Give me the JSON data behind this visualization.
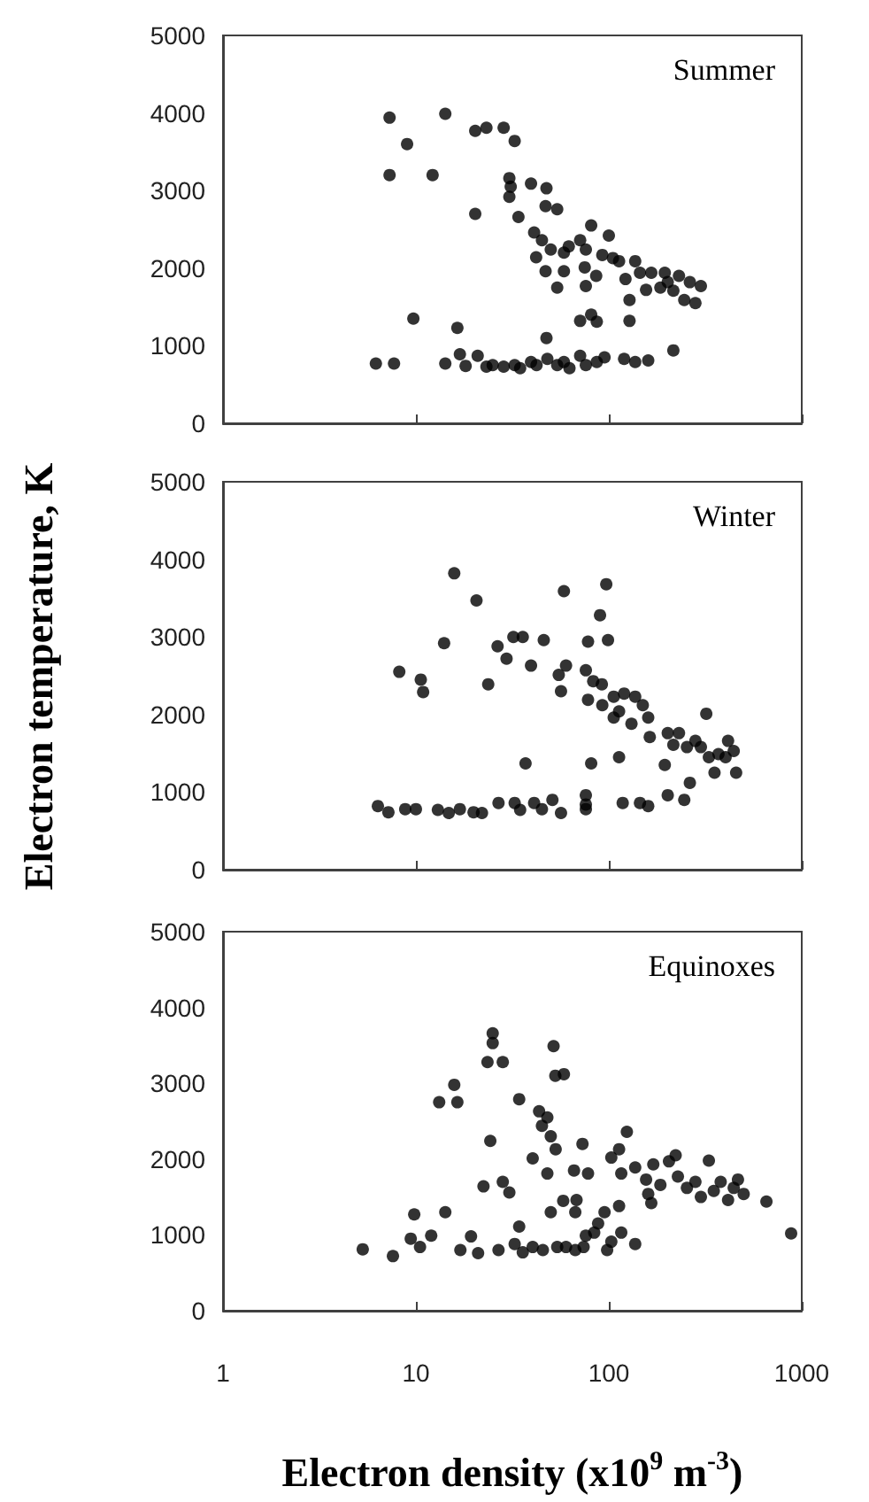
{
  "chart_data": [
    {
      "type": "scatter",
      "title": "Summer",
      "color": "#000000",
      "marker": "circle",
      "log": "x",
      "tick_labels": "y",
      "xlim": [
        1,
        1000
      ],
      "xticks": [
        1,
        10,
        100,
        1000
      ],
      "ylim": [
        0,
        5000
      ],
      "yticks": [
        0,
        1000,
        2000,
        3000,
        4000,
        5000
      ],
      "x": [
        7.3,
        7.3,
        9,
        14.2,
        12.2,
        20.3,
        23.2,
        28.5,
        32.5,
        20.3,
        30.5,
        31,
        30.5,
        34,
        39.5,
        47.5,
        47,
        54,
        41,
        45,
        42,
        47,
        50,
        54,
        58.5,
        62,
        58.5,
        71,
        76,
        81,
        75,
        76,
        86,
        92.5,
        100,
        105,
        113,
        122,
        128,
        137,
        145,
        156,
        166,
        185,
        195,
        202,
        216,
        231,
        246,
        263,
        281,
        300,
        6.2,
        7.7,
        9.7,
        14.2,
        16.4,
        16.9,
        18.1,
        20.9,
        23.2,
        25,
        28.5,
        32.5,
        34.7,
        39.5,
        42.2,
        47.5,
        48,
        54,
        58.5,
        62.5,
        71,
        71,
        81,
        86.6,
        76,
        86.6,
        95,
        120,
        128,
        137,
        160,
        216
      ],
      "values": [
        3940,
        3200,
        3600,
        3990,
        3200,
        3770,
        3810,
        3810,
        3640,
        2700,
        3160,
        3050,
        2920,
        2660,
        3090,
        3030,
        2800,
        2760,
        2460,
        2360,
        2140,
        1960,
        2240,
        1750,
        2200,
        2280,
        1960,
        2360,
        2240,
        2550,
        2010,
        1770,
        1900,
        2170,
        2420,
        2130,
        2090,
        1860,
        1590,
        2090,
        1940,
        1720,
        1940,
        1750,
        1940,
        1820,
        1710,
        1900,
        1590,
        1820,
        1550,
        1770,
        770,
        770,
        1350,
        770,
        1230,
        890,
        740,
        870,
        730,
        750,
        730,
        750,
        710,
        790,
        750,
        1100,
        830,
        750,
        790,
        710,
        870,
        1320,
        1400,
        1310,
        750,
        790,
        850,
        830,
        1320,
        790,
        810,
        940
      ]
    },
    {
      "type": "scatter",
      "title": "Winter",
      "ylabel": "Electron temperature, K",
      "color": "#000000",
      "marker": "circle",
      "log": "x",
      "tick_labels": "y",
      "xlim": [
        1,
        1000
      ],
      "xticks": [
        1,
        10,
        100,
        1000
      ],
      "ylim": [
        0,
        5000
      ],
      "yticks": [
        0,
        1000,
        2000,
        3000,
        4000,
        5000
      ],
      "x": [
        8.2,
        10.6,
        10.9,
        15.8,
        14,
        20.6,
        23.7,
        26.5,
        29.5,
        32,
        35.8,
        39.5,
        46,
        55,
        56.5,
        58.5,
        60,
        76,
        78,
        90,
        97,
        99,
        78,
        83,
        92,
        92.5,
        106,
        106,
        113,
        120,
        131,
        137,
        150,
        160,
        163,
        202,
        216,
        231,
        254,
        281,
        300,
        320,
        330,
        353,
        370,
        403,
        415,
        444,
        457,
        81,
        37,
        113,
        195,
        263,
        202,
        246,
        118,
        145,
        160,
        76,
        76,
        6.35,
        7.2,
        8.8,
        10,
        13,
        14.8,
        16.9,
        19.9,
        22,
        26.8,
        32.5,
        34.7,
        41,
        45,
        51,
        56.5,
        76
      ],
      "values": [
        2550,
        2450,
        2290,
        3820,
        2920,
        3470,
        2390,
        2880,
        2720,
        3000,
        3000,
        2630,
        2960,
        2510,
        2300,
        3590,
        2630,
        2570,
        2940,
        3280,
        3680,
        2960,
        2190,
        2430,
        2390,
        2120,
        2230,
        1960,
        2040,
        2270,
        1880,
        2230,
        2120,
        1960,
        1710,
        1760,
        1610,
        1760,
        1580,
        1660,
        1580,
        2010,
        1450,
        1250,
        1490,
        1450,
        1660,
        1530,
        1250,
        1370,
        1370,
        1450,
        1350,
        1120,
        960,
        900,
        860,
        860,
        820,
        840,
        960,
        820,
        740,
        780,
        780,
        770,
        730,
        780,
        740,
        730,
        860,
        860,
        770,
        860,
        780,
        900,
        730,
        780
      ]
    },
    {
      "type": "scatter",
      "title": "Equinoxes",
      "xlabel": "Electron density (x10$^{9}$ m$^{-3}$)",
      "color": "#000000",
      "marker": "circle",
      "log": "x",
      "xlim": [
        1,
        1000
      ],
      "xticks": [
        1,
        10,
        100,
        1000
      ],
      "ylim": [
        0,
        5000
      ],
      "yticks": [
        0,
        1000,
        2000,
        3000,
        4000,
        5000
      ],
      "x": [
        5.3,
        7.6,
        9.8,
        9.4,
        10.5,
        12,
        13.2,
        14.2,
        15.8,
        16.4,
        17,
        19.3,
        21,
        22.4,
        24.3,
        25,
        25,
        23.5,
        28.2,
        28.2,
        30.5,
        34.3,
        34.3,
        40.3,
        43.5,
        45,
        48,
        51.7,
        50,
        52.8,
        58.5,
        53,
        48,
        50,
        58,
        67,
        68,
        73,
        78,
        66,
        88,
        95,
        103,
        113,
        113,
        116,
        124,
        116,
        137,
        137,
        156,
        160,
        166,
        170,
        185,
        205,
        222,
        228,
        254,
        281,
        300,
        330,
        350,
        380,
        415,
        444,
        467,
        500,
        656,
        881,
        26.8,
        32.5,
        35.8,
        40.3,
        45.5,
        54,
        60,
        67,
        74,
        98,
        76,
        84,
        103
      ],
      "values": [
        810,
        720,
        1270,
        950,
        840,
        990,
        2750,
        1300,
        2980,
        2750,
        800,
        980,
        760,
        1640,
        2240,
        3660,
        3530,
        3280,
        3280,
        1700,
        1560,
        2790,
        1110,
        2010,
        2630,
        2440,
        2550,
        3490,
        2300,
        3100,
        3120,
        2130,
        1810,
        1300,
        1450,
        1300,
        1460,
        2200,
        1810,
        1850,
        1150,
        1300,
        2020,
        2130,
        1380,
        1810,
        2360,
        1030,
        880,
        1890,
        1730,
        1540,
        1420,
        1930,
        1660,
        1970,
        2050,
        1770,
        1620,
        1700,
        1500,
        1980,
        1580,
        1700,
        1460,
        1620,
        1730,
        1540,
        1440,
        1020,
        800,
        880,
        770,
        840,
        800,
        840,
        840,
        800,
        840,
        800,
        990,
        1030,
        910
      ]
    }
  ]
}
